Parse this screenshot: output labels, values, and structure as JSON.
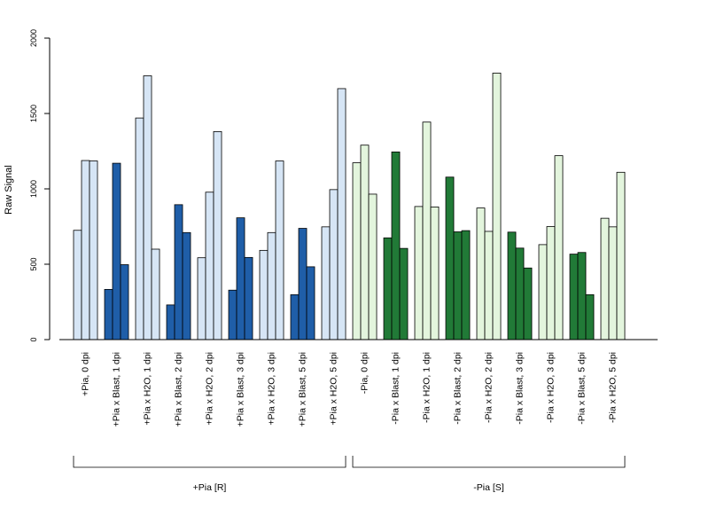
{
  "chart_data": {
    "type": "bar",
    "ylabel": "Raw Signal",
    "ylim": [
      0,
      2000
    ],
    "yticks": [
      "0",
      "500",
      "1000",
      "1500",
      "2000"
    ],
    "colors": {
      "light_blue": "#d6e5f5",
      "dark_blue": "#1f5ea8",
      "light_green": "#e3f5dd",
      "dark_green": "#217a37"
    },
    "categories": [
      {
        "label": "+Pia, 0 dpi",
        "values": [
          725,
          1188,
          1185
        ],
        "color": "light_blue"
      },
      {
        "label": "+Pia x Blast, 1 dpi",
        "values": [
          333,
          1170,
          497
        ],
        "color": "dark_blue"
      },
      {
        "label": "+Pia x H2O, 1 dpi",
        "values": [
          1470,
          1750,
          600
        ],
        "color": "light_blue"
      },
      {
        "label": "+Pia x Blast, 2 dpi",
        "values": [
          230,
          895,
          710
        ],
        "color": "dark_blue"
      },
      {
        "label": "+Pia x H2O, 2 dpi",
        "values": [
          543,
          978,
          1380
        ],
        "color": "light_blue"
      },
      {
        "label": "+Pia x Blast, 3 dpi",
        "values": [
          328,
          808,
          545
        ],
        "color": "dark_blue"
      },
      {
        "label": "+Pia x H2O, 3 dpi",
        "values": [
          592,
          710,
          1185
        ],
        "color": "light_blue"
      },
      {
        "label": "+Pia x Blast, 5 dpi",
        "values": [
          298,
          738,
          483
        ],
        "color": "dark_blue"
      },
      {
        "label": "+Pia x H2O, 5 dpi",
        "values": [
          748,
          995,
          1665
        ],
        "color": "light_blue"
      },
      {
        "label": "-Pia, 0 dpi",
        "values": [
          1173,
          1290,
          965
        ],
        "color": "light_green"
      },
      {
        "label": "-Pia x Blast, 1 dpi",
        "values": [
          675,
          1245,
          605
        ],
        "color": "dark_green"
      },
      {
        "label": "-Pia x H2O, 1 dpi",
        "values": [
          883,
          1443,
          880
        ],
        "color": "light_green"
      },
      {
        "label": "-Pia x Blast, 2 dpi",
        "values": [
          1078,
          715,
          723
        ],
        "color": "dark_green"
      },
      {
        "label": "-Pia x H2O, 2 dpi",
        "values": [
          873,
          718,
          1768
        ],
        "color": "light_green"
      },
      {
        "label": "-Pia x Blast, 3 dpi",
        "values": [
          713,
          607,
          475
        ],
        "color": "dark_green"
      },
      {
        "label": "-Pia x H2O, 3 dpi",
        "values": [
          630,
          750,
          1220
        ],
        "color": "light_green"
      },
      {
        "label": "-Pia x Blast, 5 dpi",
        "values": [
          567,
          578,
          298
        ],
        "color": "dark_green"
      },
      {
        "label": "-Pia x H2O, 5 dpi",
        "values": [
          805,
          748,
          1110
        ],
        "color": "light_green"
      }
    ],
    "groups": [
      {
        "label": "+Pia [R]",
        "from": 0,
        "to": 8
      },
      {
        "label": "-Pia [S]",
        "from": 9,
        "to": 17
      }
    ]
  }
}
